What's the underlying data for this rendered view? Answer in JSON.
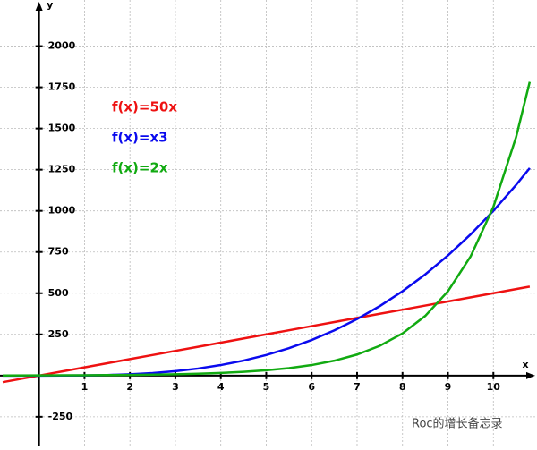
{
  "chart_data": {
    "type": "line",
    "x_label": "x",
    "y_label": "y",
    "x": [
      -0.8,
      0,
      0.5,
      1,
      1.5,
      2,
      2.5,
      3,
      3.5,
      4,
      4.5,
      5,
      5.5,
      6,
      6.5,
      7,
      7.5,
      8,
      8.5,
      9,
      9.5,
      10,
      10.5,
      10.8
    ],
    "series": [
      {
        "name": "f(x)=50x",
        "color": "#ee1111",
        "values": [
          -40,
          0,
          25,
          50,
          75,
          100,
          125,
          150,
          175,
          200,
          225,
          250,
          275,
          300,
          325,
          350,
          375,
          400,
          425,
          450,
          475,
          500,
          525,
          540
        ]
      },
      {
        "name": "f(x)=x3",
        "color": "#0a0aee",
        "values": [
          -0.512,
          0,
          0.125,
          1,
          3.375,
          8,
          15.625,
          27,
          42.875,
          64,
          91.125,
          125,
          166.375,
          216,
          274.625,
          343,
          421.875,
          512,
          614.125,
          729,
          857.375,
          1000,
          1157.625,
          1259.712
        ]
      },
      {
        "name": "f(x)=2x",
        "color": "#11aa11",
        "values": [
          0.574,
          1,
          1.414,
          2,
          2.828,
          4,
          5.657,
          8,
          11.314,
          16,
          22.627,
          32,
          45.255,
          64,
          90.51,
          128,
          181.02,
          256,
          362.04,
          512,
          724.08,
          1024,
          1448.15,
          1782.89
        ]
      }
    ],
    "xlim": [
      -0.86,
      10.96
    ],
    "ylim": [
      -430,
      2280
    ],
    "xticks": [
      1,
      2,
      3,
      4,
      5,
      6,
      7,
      8,
      9,
      10
    ],
    "yticks": [
      -250,
      250,
      500,
      750,
      1000,
      1250,
      1500,
      1750,
      2000
    ],
    "grid": true
  },
  "watermark": "Roc的增长备忘录"
}
